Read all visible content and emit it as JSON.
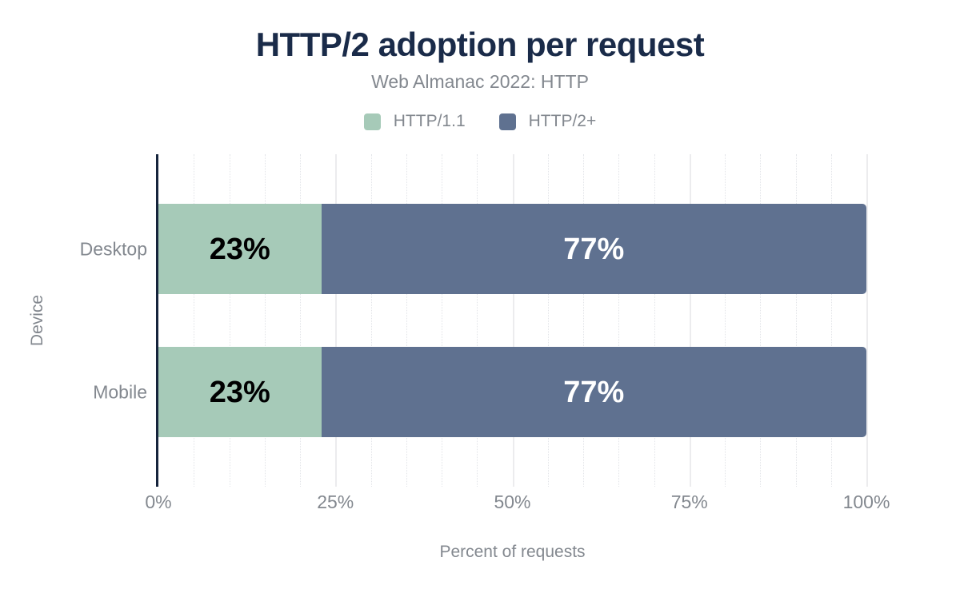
{
  "chart_data": {
    "type": "bar",
    "orientation": "horizontal",
    "stacked": true,
    "title": "HTTP/2 adoption per request",
    "subtitle": "Web Almanac 2022: HTTP",
    "xlabel": "Percent of requests",
    "ylabel": "Device",
    "xlim": [
      0,
      100
    ],
    "x_ticks": [
      {
        "value": 0,
        "label": "0%"
      },
      {
        "value": 25,
        "label": "25%"
      },
      {
        "value": 50,
        "label": "50%"
      },
      {
        "value": 75,
        "label": "75%"
      },
      {
        "value": 100,
        "label": "100%"
      }
    ],
    "grid": {
      "minor_step_percent": 5,
      "major_step_percent": 25,
      "minor_style": "dotted",
      "major_style": "solid"
    },
    "legend_position": "top",
    "categories": [
      "Desktop",
      "Mobile"
    ],
    "series": [
      {
        "name": "HTTP/1.1",
        "color": "#a6cab8",
        "label_color": "#000000",
        "values": [
          23,
          23
        ],
        "labels": [
          "23%",
          "23%"
        ]
      },
      {
        "name": "HTTP/2+",
        "color": "#5f7190",
        "label_color": "#ffffff",
        "values": [
          77,
          77
        ],
        "labels": [
          "77%",
          "77%"
        ]
      }
    ],
    "colors": {
      "title": "#1a2b49",
      "axis_line": "#16243c",
      "text_gray": "#83888f",
      "grid_major": "#ececee",
      "grid_minor": "#e2e4e8",
      "background": "#ffffff"
    }
  }
}
